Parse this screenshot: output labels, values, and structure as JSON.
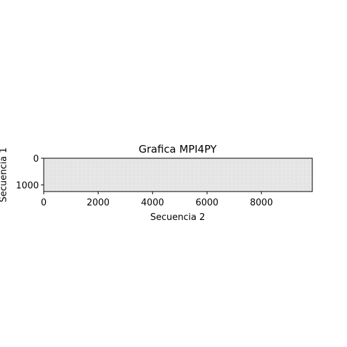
{
  "chart_data": {
    "type": "heatmap",
    "title": "Grafica MPI4PY",
    "xlabel": "Secuencia 2",
    "ylabel": "Secuencia 1",
    "xlim": [
      0,
      9870
    ],
    "ylim": [
      1250,
      0
    ],
    "x_ticks": [
      {
        "value": 0,
        "label": "0"
      },
      {
        "value": 2000,
        "label": "2000"
      },
      {
        "value": 4000,
        "label": "4000"
      },
      {
        "value": 6000,
        "label": "6000"
      },
      {
        "value": 8000,
        "label": "8000"
      }
    ],
    "y_ticks": [
      {
        "value": 0,
        "label": "0"
      },
      {
        "value": 1000,
        "label": "1000"
      }
    ],
    "grid": false,
    "cell_color": "#e6e6e6",
    "frame_color": "#000000"
  }
}
